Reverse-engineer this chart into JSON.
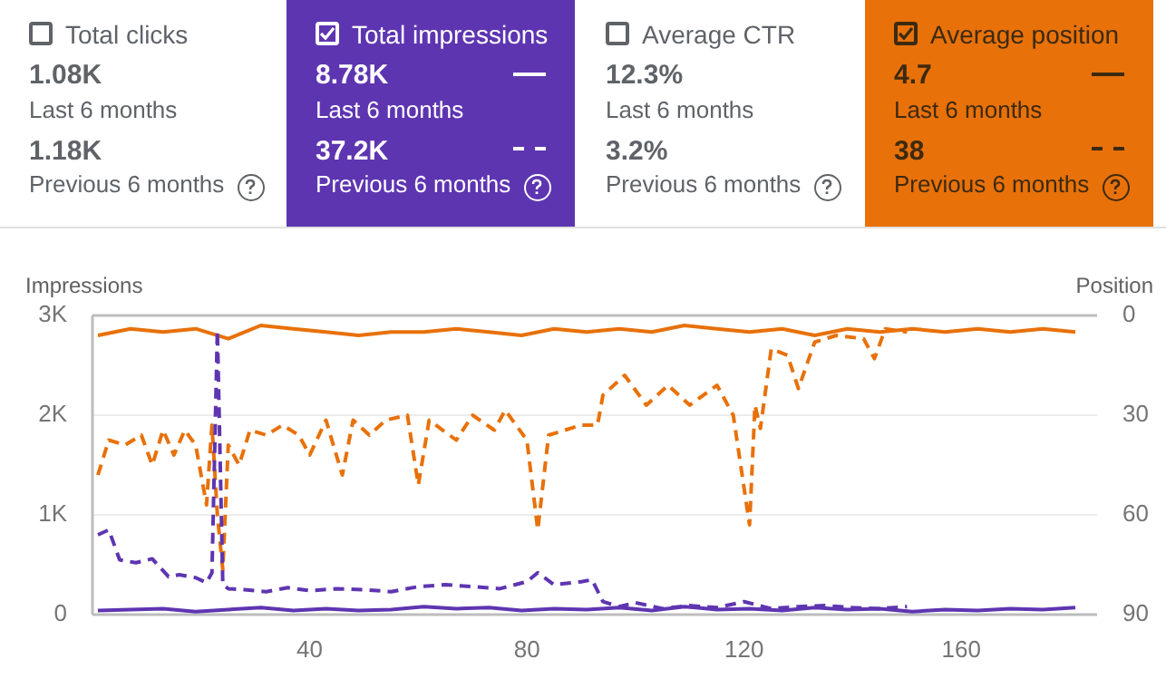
{
  "chart_data": [
    {
      "type": "other",
      "colors": [
        "#ffffff",
        "#5e35b1",
        "#ffffff",
        "#e8710a"
      ],
      "annotations": [
        "Total clicks",
        "1.08K",
        "Last 6 months",
        "1.18K",
        "Previous 6 months",
        "Total impressions",
        "8.78K",
        "Last 6 months",
        "37.2K",
        "Previous 6 months",
        "Average CTR",
        "12.3%",
        "Last 6 months",
        "3.2%",
        "Previous 6 months",
        "Average position",
        "4.7",
        "Last 6 months",
        "38",
        "Previous 6 months"
      ]
    },
    {
      "type": "line",
      "ylabel": "Impressions",
      "y2label": "Position",
      "xlim": [
        0,
        185
      ],
      "xticks": [
        40,
        80,
        120,
        160
      ],
      "ylim": [
        0,
        3000
      ],
      "yticks": [
        {
          "value": 0,
          "label": "0"
        },
        {
          "value": 1000,
          "label": "1K"
        },
        {
          "value": 2000,
          "label": "2K"
        },
        {
          "value": 3000,
          "label": "3K"
        }
      ],
      "y2lim": [
        90,
        0
      ],
      "y2ticks": [
        0,
        30,
        60,
        90
      ],
      "grid": "y",
      "legend": false,
      "series": [
        {
          "color": "#5e35b1",
          "line_style": "solid",
          "x": [
            1,
            7,
            13,
            19,
            25,
            31,
            37,
            43,
            49,
            55,
            61,
            67,
            73,
            79,
            85,
            91,
            97,
            103,
            109,
            115,
            121,
            127,
            133,
            139,
            145,
            151,
            157,
            163,
            169,
            175,
            181
          ],
          "values": [
            40,
            50,
            60,
            30,
            50,
            70,
            40,
            60,
            40,
            50,
            80,
            60,
            70,
            40,
            60,
            50,
            70,
            40,
            80,
            50,
            60,
            40,
            70,
            50,
            60,
            30,
            50,
            40,
            60,
            50,
            70
          ]
        },
        {
          "color": "#5e35b1",
          "line_style": "dashed",
          "x": [
            1,
            3,
            5,
            8,
            11,
            14,
            16,
            19,
            21,
            22,
            23,
            24,
            25,
            28,
            32,
            36,
            40,
            45,
            50,
            55,
            60,
            65,
            70,
            75,
            80,
            82,
            85,
            90,
            92,
            94,
            97,
            100,
            105,
            110,
            115,
            120,
            125,
            130,
            135,
            140,
            145,
            150
          ],
          "values": [
            800,
            850,
            550,
            520,
            560,
            380,
            400,
            370,
            320,
            420,
            2850,
            300,
            260,
            250,
            230,
            270,
            240,
            260,
            250,
            230,
            280,
            300,
            280,
            260,
            330,
            420,
            300,
            330,
            350,
            130,
            80,
            120,
            60,
            90,
            70,
            130,
            60,
            80,
            90,
            70,
            60,
            80
          ]
        },
        {
          "color": "#e8710a",
          "line_style": "solid",
          "axis": "y2",
          "x": [
            1,
            7,
            13,
            19,
            25,
            31,
            37,
            43,
            49,
            55,
            61,
            67,
            73,
            79,
            85,
            91,
            97,
            103,
            109,
            115,
            121,
            127,
            133,
            139,
            145,
            151,
            157,
            163,
            169,
            175,
            181
          ],
          "values": [
            6,
            4,
            5,
            4,
            7,
            3,
            4,
            5,
            6,
            5,
            5,
            4,
            5,
            6,
            4,
            5,
            4,
            5,
            3,
            4,
            5,
            4,
            6,
            4,
            5,
            4,
            5,
            4,
            5,
            4,
            5
          ]
        },
        {
          "color": "#e8710a",
          "line_style": "dashed",
          "axis": "y2",
          "x": [
            1,
            3,
            6,
            9,
            11,
            13,
            15,
            17,
            19,
            21,
            22,
            23,
            24,
            25,
            27,
            29,
            32,
            35,
            38,
            40,
            43,
            46,
            48,
            51,
            54,
            58,
            60,
            62,
            67,
            70,
            74,
            76,
            80,
            82,
            84,
            90,
            93,
            94,
            98,
            102,
            106,
            110,
            115,
            118,
            121,
            122,
            123,
            125,
            128,
            130,
            133,
            137,
            142,
            144,
            146,
            150
          ],
          "values": [
            48,
            37.5,
            39,
            36,
            45,
            34.5,
            42,
            34.5,
            39,
            57,
            33,
            60,
            76.5,
            39,
            45,
            34.5,
            36,
            33,
            36,
            42,
            31.5,
            48,
            31.5,
            36,
            31.5,
            30,
            51,
            31.5,
            37.5,
            30,
            34.5,
            28.5,
            37.5,
            64.5,
            36,
            33,
            33,
            24,
            18,
            27,
            21,
            27,
            21,
            30,
            63,
            27,
            34,
            10,
            12,
            22,
            8,
            6,
            7,
            13,
            4,
            5
          ]
        }
      ]
    }
  ]
}
